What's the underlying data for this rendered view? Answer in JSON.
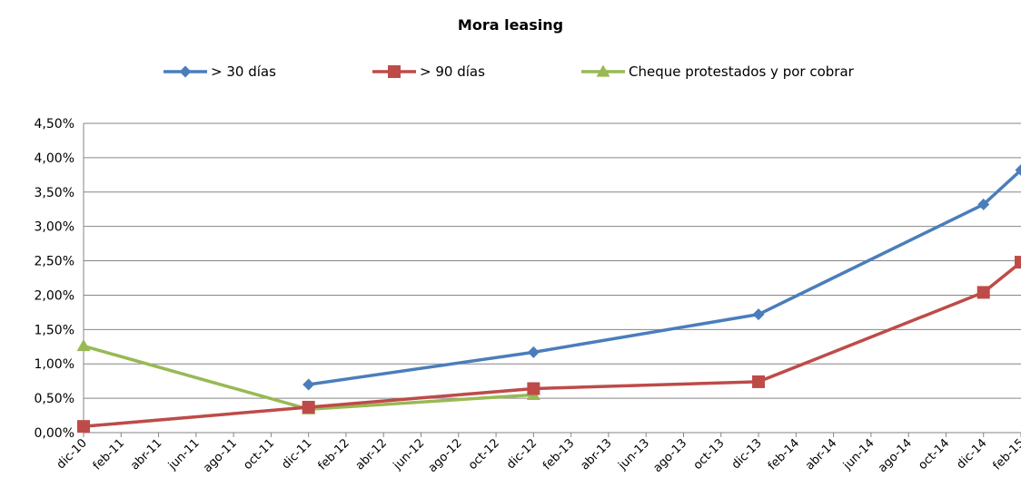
{
  "chart_data": {
    "type": "line",
    "title": "Mora leasing",
    "xlabel": "",
    "ylabel": "",
    "ylim": [
      0,
      0.045
    ],
    "yticks": [
      "0,00%",
      "0,50%",
      "1,00%",
      "1,50%",
      "2,00%",
      "2,50%",
      "3,00%",
      "3,50%",
      "4,00%",
      "4,50%"
    ],
    "categories": [
      "dic-10",
      "feb-11",
      "abr-11",
      "jun-11",
      "ago-11",
      "oct-11",
      "dic-11",
      "feb-12",
      "abr-12",
      "jun-12",
      "ago-12",
      "oct-12",
      "dic-12",
      "feb-13",
      "abr-13",
      "jun-13",
      "ago-13",
      "oct-13",
      "dic-13",
      "feb-14",
      "abr-14",
      "jun-14",
      "ago-14",
      "oct-14",
      "dic-14",
      "feb-15"
    ],
    "legend_position": "top",
    "grid": true,
    "series": [
      {
        "name": "> 30 días",
        "color": "#4A7EBB",
        "marker": "diamond",
        "points": [
          {
            "x": "dic-11",
            "y": 0.007
          },
          {
            "x": "dic-12",
            "y": 0.0117
          },
          {
            "x": "dic-13",
            "y": 0.0172
          },
          {
            "x": "dic-14",
            "y": 0.0332
          },
          {
            "x": "feb-15",
            "y": 0.0382
          }
        ]
      },
      {
        "name": "> 90 días",
        "color": "#BE4B48",
        "marker": "square",
        "points": [
          {
            "x": "dic-10",
            "y": 0.0009
          },
          {
            "x": "dic-11",
            "y": 0.0037
          },
          {
            "x": "dic-12",
            "y": 0.0064
          },
          {
            "x": "dic-13",
            "y": 0.0074
          },
          {
            "x": "dic-14",
            "y": 0.0204
          },
          {
            "x": "feb-15",
            "y": 0.0248
          }
        ]
      },
      {
        "name": "Cheque protestados y por cobrar",
        "color": "#98B954",
        "marker": "triangle",
        "points": [
          {
            "x": "dic-10",
            "y": 0.0126
          },
          {
            "x": "dic-11",
            "y": 0.0034
          },
          {
            "x": "dic-12",
            "y": 0.0055
          }
        ]
      }
    ]
  }
}
